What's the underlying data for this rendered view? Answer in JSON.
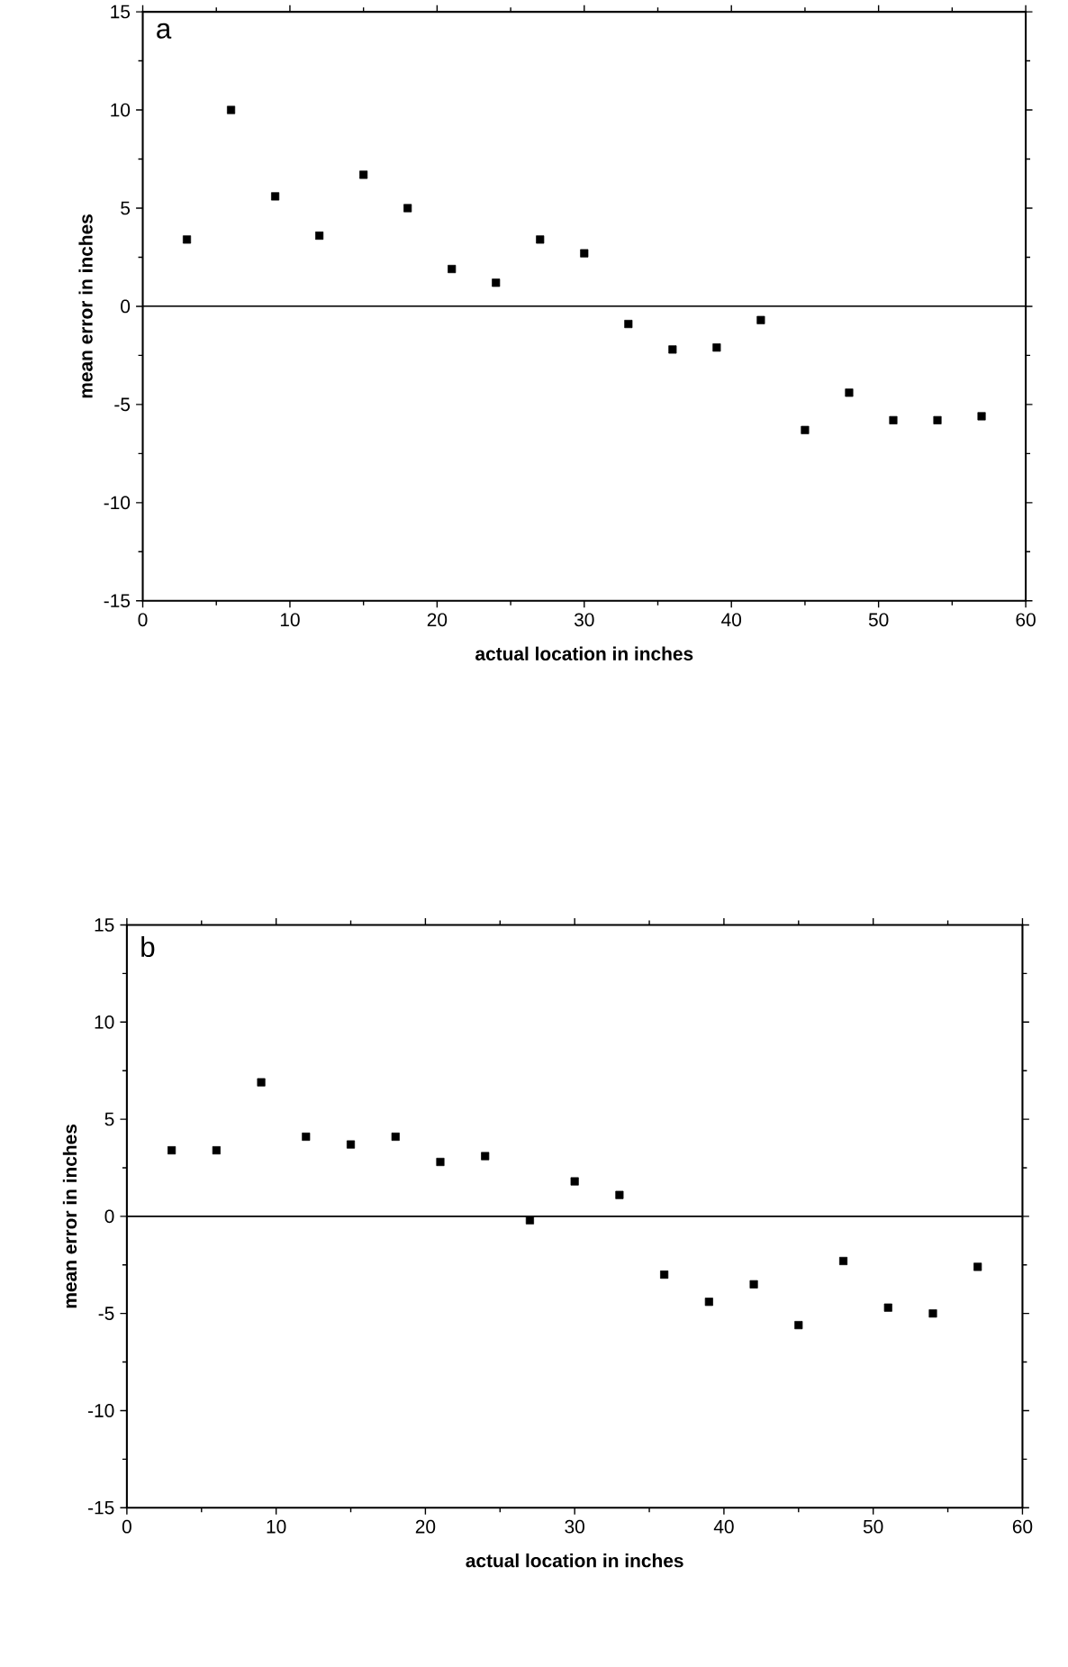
{
  "chart_data": [
    {
      "type": "scatter",
      "annotations": [
        "a"
      ],
      "xlabel": "actual location in inches",
      "ylabel": "mean error in inches",
      "marker": "square",
      "x": [
        3,
        6,
        9,
        12,
        15,
        18,
        21,
        24,
        27,
        30,
        33,
        36,
        39,
        42,
        45,
        48,
        51,
        54,
        57
      ],
      "series": [
        {
          "color": "#000000",
          "values": [
            3.4,
            10,
            5.6,
            3.6,
            6.7,
            5.0,
            1.9,
            1.2,
            3.4,
            2.7,
            -0.9,
            -2.2,
            -2.1,
            -0.7,
            -6.3,
            -4.4,
            -5.8,
            -5.8,
            -5.6
          ]
        }
      ],
      "xlim": [
        0,
        60
      ],
      "ylim": [
        -15,
        15
      ],
      "xticks": [
        0,
        10,
        20,
        30,
        40,
        50,
        60
      ],
      "yticks": [
        -15,
        -10,
        -5,
        0,
        5,
        10,
        15
      ],
      "ref_lines": [
        {
          "axis": "y",
          "value": 0,
          "color": "#000000"
        }
      ]
    },
    {
      "type": "scatter",
      "annotations": [
        "b"
      ],
      "xlabel": "actual location in inches",
      "ylabel": "mean error in inches",
      "marker": "square",
      "x": [
        3,
        6,
        9,
        12,
        15,
        18,
        21,
        24,
        27,
        30,
        33,
        36,
        39,
        42,
        45,
        48,
        51,
        54,
        57
      ],
      "series": [
        {
          "color": "#000000",
          "values": [
            3.4,
            3.4,
            6.9,
            4.1,
            3.7,
            4.1,
            2.8,
            3.1,
            -0.2,
            1.8,
            1.1,
            -3.0,
            -4.4,
            -3.5,
            -5.6,
            -2.3,
            -4.7,
            -5.0,
            -2.6
          ]
        }
      ],
      "xlim": [
        0,
        60
      ],
      "ylim": [
        -15,
        15
      ],
      "xticks": [
        0,
        10,
        20,
        30,
        40,
        50,
        60
      ],
      "yticks": [
        -15,
        -10,
        -5,
        0,
        5,
        10,
        15
      ],
      "ref_lines": [
        {
          "axis": "y",
          "value": 0,
          "color": "#000000"
        }
      ]
    }
  ]
}
